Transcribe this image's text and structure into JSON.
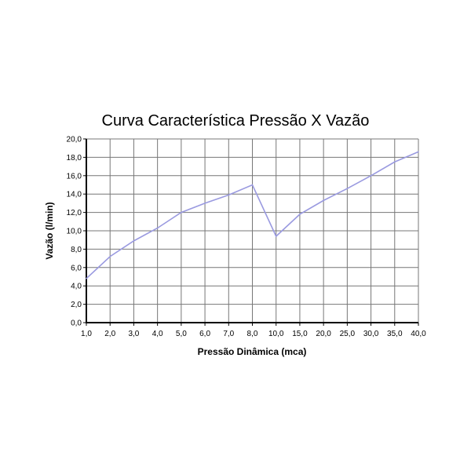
{
  "chart_data": {
    "type": "line",
    "title": "Curva Característica Pressão X Vazão",
    "xlabel": "Pressão Dinâmica (mca)",
    "ylabel": "Vazão (l/min)",
    "categories": [
      "1,0",
      "2,0",
      "3,0",
      "4,0",
      "5,0",
      "6,0",
      "7,0",
      "8,0",
      "10,0",
      "15,0",
      "20,0",
      "25,0",
      "30,0",
      "35,0",
      "40,0"
    ],
    "values": [
      4.8,
      7.2,
      8.9,
      10.3,
      12.0,
      13.0,
      13.9,
      15.0,
      9.4,
      11.8,
      13.3,
      14.6,
      16.0,
      17.5,
      18.6
    ],
    "ylim": [
      0,
      20
    ],
    "yticks": [
      "0,0",
      "2,0",
      "4,0",
      "6,0",
      "8,0",
      "10,0",
      "12,0",
      "14,0",
      "16,0",
      "18,0",
      "20,0"
    ],
    "grid": true,
    "legend": "none",
    "line_color": "#9a9ae0"
  }
}
